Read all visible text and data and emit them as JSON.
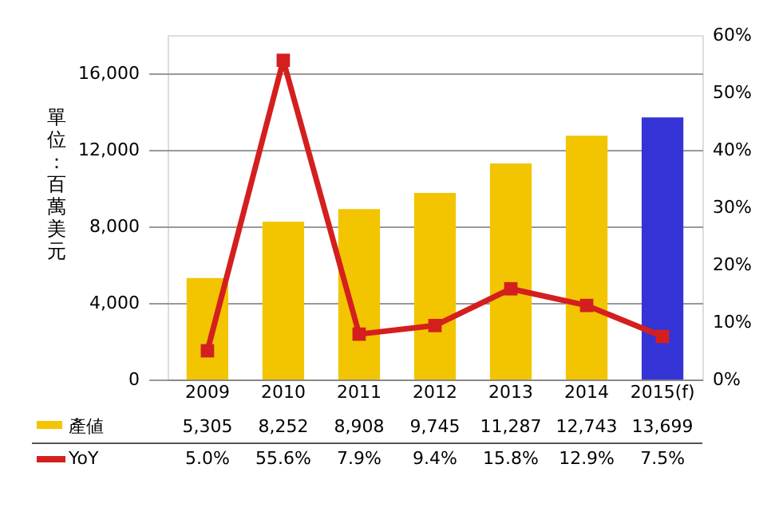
{
  "chart_data": {
    "type": "bar",
    "categories": [
      "2009",
      "2010",
      "2011",
      "2012",
      "2013",
      "2014",
      "2015(f)"
    ],
    "ylabel": "單位：百萬美元",
    "ylim": [
      0,
      18000
    ],
    "yticks": [
      0,
      {
        "value": 4000,
        "label": "4,000"
      },
      {
        "value": 8000,
        "label": "8,000"
      },
      {
        "value": 12000,
        "label": "12,000"
      },
      {
        "value": 16000,
        "label": "16,000"
      }
    ],
    "y2lim": [
      0,
      60
    ],
    "y2ticks": [
      {
        "value": 0,
        "label": "0%"
      },
      {
        "value": 10,
        "label": "10%"
      },
      {
        "value": 20,
        "label": "20%"
      },
      {
        "value": 30,
        "label": "30%"
      },
      {
        "value": 40,
        "label": "40%"
      },
      {
        "value": 50,
        "label": "50%"
      },
      {
        "value": 60,
        "label": "60%"
      }
    ],
    "grid": "y",
    "legend": "bottom",
    "marker": "square",
    "line_style": "solid",
    "series": [
      {
        "name": "產値",
        "color": "#f2c500",
        "colors": [
          "#f2c500",
          "#f2c500",
          "#f2c500",
          "#f2c500",
          "#f2c500",
          "#f2c500",
          "#3434d6"
        ],
        "values": [
          5305,
          8252,
          8908,
          9745,
          11287,
          12743,
          13699
        ],
        "value_labels": [
          "5,305",
          "8,252",
          "8,908",
          "9,745",
          "11,287",
          "12,743",
          "13,699"
        ]
      },
      {
        "name": "YoY",
        "type": "line",
        "axis": "y2",
        "color": "#d41f1f",
        "values": [
          5.0,
          55.6,
          7.9,
          9.4,
          15.8,
          12.9,
          7.5
        ],
        "value_labels": [
          "5.0%",
          "55.6%",
          "7.9%",
          "9.4%",
          "15.8%",
          "12.9%",
          "7.5%"
        ]
      }
    ]
  }
}
